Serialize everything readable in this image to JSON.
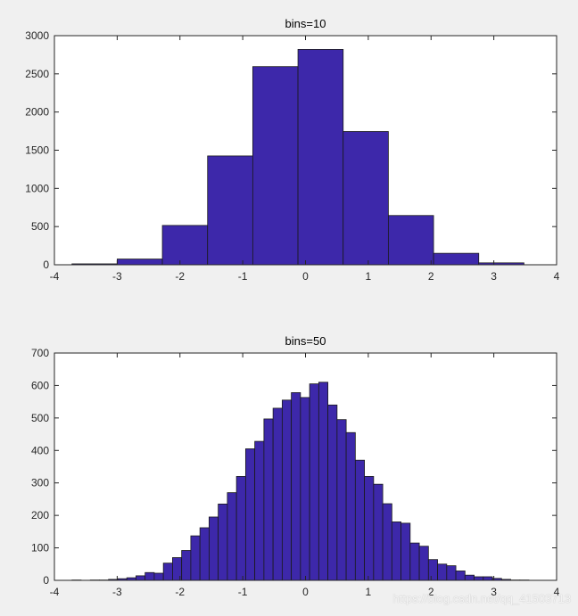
{
  "colors": {
    "bar_fill": "#3d28aa",
    "bar_edge": "#1a1a1a",
    "figure_bg": "#f0f0f0",
    "axes_bg": "#ffffff"
  },
  "watermark": "https://blog.csdn.net/qq_41503713",
  "chart_data": [
    {
      "type": "bar",
      "title": "bins=10",
      "xlabel": "",
      "ylabel": "",
      "xlim": [
        -4,
        4
      ],
      "ylim": [
        0,
        3000
      ],
      "xticks": [
        "-4",
        "-3",
        "-2",
        "-1",
        "0",
        "1",
        "2",
        "3",
        "4"
      ],
      "yticks": [
        "0",
        "500",
        "1000",
        "1500",
        "2000",
        "2500",
        "3000"
      ],
      "bin_edges": [
        -3.72,
        -3.0,
        -2.28,
        -1.56,
        -0.84,
        -0.12,
        0.6,
        1.32,
        2.04,
        2.76,
        3.48
      ],
      "values": [
        12,
        75,
        515,
        1425,
        2595,
        2820,
        1745,
        645,
        150,
        25
      ]
    },
    {
      "type": "bar",
      "title": "bins=50",
      "xlabel": "",
      "ylabel": "",
      "xlim": [
        -4,
        4
      ],
      "ylim": [
        0,
        700
      ],
      "xticks": [
        "-4",
        "-3",
        "-2",
        "-1",
        "0",
        "1",
        "2",
        "3",
        "4"
      ],
      "yticks": [
        "0",
        "100",
        "200",
        "300",
        "400",
        "500",
        "600",
        "700"
      ],
      "bin_start": -3.72,
      "bin_end": 3.56,
      "values": [
        1,
        0,
        1,
        1,
        3,
        5,
        8,
        14,
        24,
        22,
        53,
        70,
        92,
        137,
        162,
        195,
        235,
        270,
        320,
        405,
        428,
        497,
        530,
        555,
        578,
        563,
        605,
        610,
        540,
        495,
        455,
        370,
        320,
        296,
        236,
        180,
        176,
        115,
        105,
        64,
        50,
        45,
        29,
        16,
        11,
        11,
        6,
        3,
        1,
        1
      ]
    }
  ]
}
